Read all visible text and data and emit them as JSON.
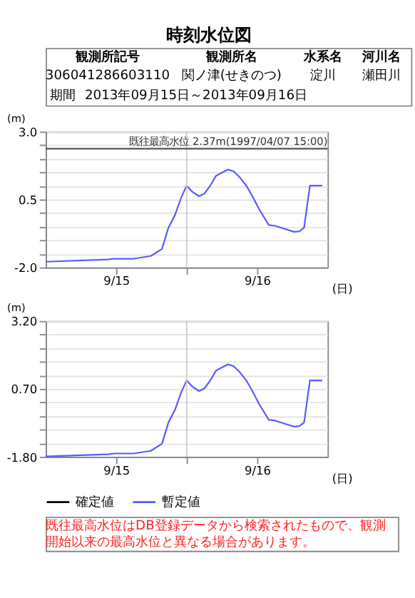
{
  "chart_data": [
    {
      "type": "line",
      "title": "時刻水位図",
      "ylabel": "(m)",
      "xlabel": "(日)",
      "annotations": [
        "観測所記号",
        "観測所名",
        "水系名",
        "河川名",
        "306041286603110",
        "関ノ津(せきのつ)",
        "淀川",
        "瀬田川",
        "期間",
        "2013年09月15日～2013年09月16日"
      ],
      "x": [
        "2013-09-15T00:00",
        "2013-09-15T10:36",
        "2013-09-15T11:42",
        "2013-09-15T15:00",
        "2013-09-15T17:54",
        "2013-09-15T19:48",
        "2013-09-15T20:54",
        "2013-09-15T22:00",
        "2013-09-15T23:06",
        "2013-09-16T00:00",
        "2013-09-16T01:00",
        "2013-09-16T02:06",
        "2013-09-16T03:00",
        "2013-09-16T04:00",
        "2013-09-16T05:00",
        "2013-09-16T06:06",
        "2013-09-16T07:00",
        "2013-09-16T08:00",
        "2013-09-16T09:06",
        "2013-09-16T10:12",
        "2013-09-16T11:18",
        "2013-09-16T12:24",
        "2013-09-16T14:00",
        "2013-09-16T15:06",
        "2013-09-16T16:30",
        "2013-09-16T18:18",
        "2013-09-16T19:12",
        "2013-09-16T20:00",
        "2013-09-16T21:00",
        "2013-09-16T23:06"
      ],
      "series": [
        {
          "color": "#5a5aff",
          "values": [
            -1.79,
            -1.71,
            -1.68,
            -1.68,
            -1.58,
            -1.32,
            -0.54,
            -0.08,
            0.58,
            1.01,
            0.78,
            0.62,
            0.71,
            1.0,
            1.37,
            1.5,
            1.6,
            1.54,
            1.3,
            1.0,
            0.58,
            0.12,
            -0.44,
            -0.47,
            -0.57,
            -0.69,
            -0.67,
            -0.54,
            1.01,
            1.01
          ]
        }
      ],
      "xlim": [
        "2013-09-15T00:00",
        "2013-09-17T00:00"
      ],
      "xticks": [
        {
          "value": "2013-09-15T12:00",
          "label": "9/15"
        },
        {
          "value": "2013-09-16T00:00",
          "label": null
        },
        {
          "value": "2013-09-16T12:00",
          "label": "9/16"
        }
      ],
      "ylim": [
        -2.0,
        3.0
      ],
      "yticks": [
        {
          "value": -2.0,
          "label": "-2.0"
        },
        {
          "value": -1.5,
          "label": null
        },
        {
          "value": -1.0,
          "label": null
        },
        {
          "value": -0.5,
          "label": null
        },
        {
          "value": 0.0,
          "label": null
        },
        0.5,
        {
          "value": 1.0,
          "label": null
        },
        {
          "value": 1.5,
          "label": null
        },
        {
          "value": 2.0,
          "label": null
        },
        {
          "value": 2.5,
          "label": null
        },
        {
          "value": 3.0,
          "label": "3.0"
        }
      ],
      "ref_lines": [
        {
          "axis": "y",
          "value": 2.37,
          "label": "既往最高水位 2.37m(1997/04/07 15:00)",
          "color": "#555555"
        },
        {
          "axis": "x",
          "value": "2013-09-16T00:00",
          "color": "#cccccc"
        }
      ],
      "grid": "y"
    },
    {
      "type": "line",
      "ylabel": "(m)",
      "xlabel": "(日)",
      "annotations": [
        "既往最高水位はDB登録データから検索されたもので、観測開始以来の最高水位と異なる場合があります。"
      ],
      "x": [
        "2013-09-15T00:00",
        "2013-09-15T10:36",
        "2013-09-15T11:42",
        "2013-09-15T15:00",
        "2013-09-15T17:54",
        "2013-09-15T19:48",
        "2013-09-15T20:54",
        "2013-09-15T22:00",
        "2013-09-15T23:06",
        "2013-09-16T00:00",
        "2013-09-16T01:00",
        "2013-09-16T02:06",
        "2013-09-16T03:00",
        "2013-09-16T04:00",
        "2013-09-16T05:00",
        "2013-09-16T06:06",
        "2013-09-16T07:00",
        "2013-09-16T08:00",
        "2013-09-16T09:06",
        "2013-09-16T10:12",
        "2013-09-16T11:18",
        "2013-09-16T12:24",
        "2013-09-16T14:00",
        "2013-09-16T15:06",
        "2013-09-16T16:30",
        "2013-09-16T18:18",
        "2013-09-16T19:12",
        "2013-09-16T20:00",
        "2013-09-16T21:00",
        "2013-09-16T23:06"
      ],
      "series": [
        {
          "name": "確定値",
          "color": "#000000",
          "values": [
            null,
            null,
            null,
            null,
            null,
            null,
            null,
            null,
            null,
            null,
            null,
            null,
            null,
            null,
            null,
            null,
            null,
            null,
            null,
            null,
            null,
            null,
            null,
            null,
            null,
            null,
            null,
            null,
            null,
            null
          ]
        },
        {
          "name": "暫定値",
          "color": "#5a5aff",
          "values": [
            -1.79,
            -1.71,
            -1.68,
            -1.68,
            -1.58,
            -1.32,
            -0.54,
            -0.08,
            0.58,
            1.01,
            0.78,
            0.62,
            0.71,
            1.0,
            1.37,
            1.5,
            1.6,
            1.54,
            1.3,
            1.0,
            0.58,
            0.12,
            -0.44,
            -0.47,
            -0.57,
            -0.69,
            -0.67,
            -0.54,
            1.01,
            1.01
          ]
        }
      ],
      "xlim": [
        "2013-09-15T00:00",
        "2013-09-17T00:00"
      ],
      "xticks": [
        {
          "value": "2013-09-15T12:00",
          "label": "9/15"
        },
        {
          "value": "2013-09-16T00:00",
          "label": null
        },
        {
          "value": "2013-09-16T12:00",
          "label": "9/16"
        }
      ],
      "ylim": [
        -1.8,
        3.2
      ],
      "yticks": [
        {
          "value": -1.8,
          "label": "-1.80"
        },
        {
          "value": -1.3,
          "label": null
        },
        {
          "value": -0.8,
          "label": null
        },
        {
          "value": -0.3,
          "label": null
        },
        {
          "value": 0.2,
          "label": null
        },
        {
          "value": 0.7,
          "label": "0.70"
        },
        {
          "value": 1.2,
          "label": null
        },
        {
          "value": 1.7,
          "label": null
        },
        {
          "value": 2.2,
          "label": null
        },
        {
          "value": 2.7,
          "label": null
        },
        {
          "value": 3.2,
          "label": "3.20"
        }
      ],
      "ref_lines": [
        {
          "axis": "x",
          "value": "2013-09-16T00:00",
          "color": "#cccccc"
        }
      ],
      "grid": "y",
      "legend": "bottom"
    }
  ]
}
